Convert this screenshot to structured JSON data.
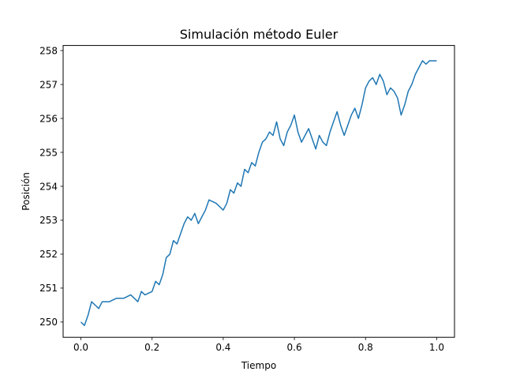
{
  "chart_data": {
    "type": "line",
    "title": "Simulación método Euler",
    "xlabel": "Tiempo",
    "ylabel": "Posición",
    "xlim": [
      -0.05,
      1.05
    ],
    "ylim": [
      249.55,
      258.15
    ],
    "xticks": [
      0.0,
      0.2,
      0.4,
      0.6,
      0.8,
      1.0
    ],
    "xtick_labels": [
      "0.0",
      "0.2",
      "0.4",
      "0.6",
      "0.8",
      "1.0"
    ],
    "yticks": [
      250,
      251,
      252,
      253,
      254,
      255,
      256,
      257,
      258
    ],
    "ytick_labels": [
      "250",
      "251",
      "252",
      "253",
      "254",
      "255",
      "256",
      "257",
      "258"
    ],
    "grid": false,
    "line_color": "#1f77b4",
    "series": [
      {
        "x": [
          0.0,
          0.01,
          0.02,
          0.03,
          0.04,
          0.05,
          0.06,
          0.08,
          0.1,
          0.12,
          0.14,
          0.16,
          0.17,
          0.18,
          0.2,
          0.21,
          0.22,
          0.23,
          0.24,
          0.25,
          0.26,
          0.27,
          0.28,
          0.29,
          0.3,
          0.31,
          0.32,
          0.33,
          0.34,
          0.35,
          0.36,
          0.38,
          0.4,
          0.41,
          0.42,
          0.43,
          0.44,
          0.45,
          0.46,
          0.47,
          0.48,
          0.49,
          0.5,
          0.51,
          0.52,
          0.53,
          0.54,
          0.55,
          0.56,
          0.57,
          0.58,
          0.59,
          0.6,
          0.61,
          0.62,
          0.63,
          0.64,
          0.65,
          0.66,
          0.67,
          0.68,
          0.69,
          0.7,
          0.71,
          0.72,
          0.73,
          0.74,
          0.75,
          0.76,
          0.77,
          0.78,
          0.79,
          0.8,
          0.81,
          0.82,
          0.83,
          0.84,
          0.85,
          0.86,
          0.87,
          0.88,
          0.89,
          0.9,
          0.91,
          0.92,
          0.93,
          0.94,
          0.95,
          0.96,
          0.97,
          0.98,
          0.99,
          1.0
        ],
        "y": [
          250.0,
          249.9,
          250.2,
          250.6,
          250.5,
          250.4,
          250.6,
          250.6,
          250.7,
          250.7,
          250.8,
          250.6,
          250.9,
          250.8,
          250.9,
          251.2,
          251.1,
          251.4,
          251.9,
          252.0,
          252.4,
          252.3,
          252.6,
          252.9,
          253.1,
          253.0,
          253.2,
          252.9,
          253.1,
          253.3,
          253.6,
          253.5,
          253.3,
          253.5,
          253.9,
          253.8,
          254.1,
          254.0,
          254.5,
          254.4,
          254.7,
          254.6,
          255.0,
          255.3,
          255.4,
          255.6,
          255.5,
          255.9,
          255.4,
          255.2,
          255.6,
          255.8,
          256.1,
          255.6,
          255.3,
          255.5,
          255.7,
          255.4,
          255.1,
          255.5,
          255.3,
          255.2,
          255.6,
          255.9,
          256.2,
          255.8,
          255.5,
          255.8,
          256.1,
          256.3,
          256.0,
          256.4,
          256.9,
          257.1,
          257.2,
          257.0,
          257.3,
          257.1,
          256.7,
          256.9,
          256.8,
          256.6,
          256.1,
          256.4,
          256.8,
          257.0,
          257.3,
          257.5,
          257.7,
          257.6,
          257.7,
          257.7,
          257.7
        ]
      }
    ]
  }
}
